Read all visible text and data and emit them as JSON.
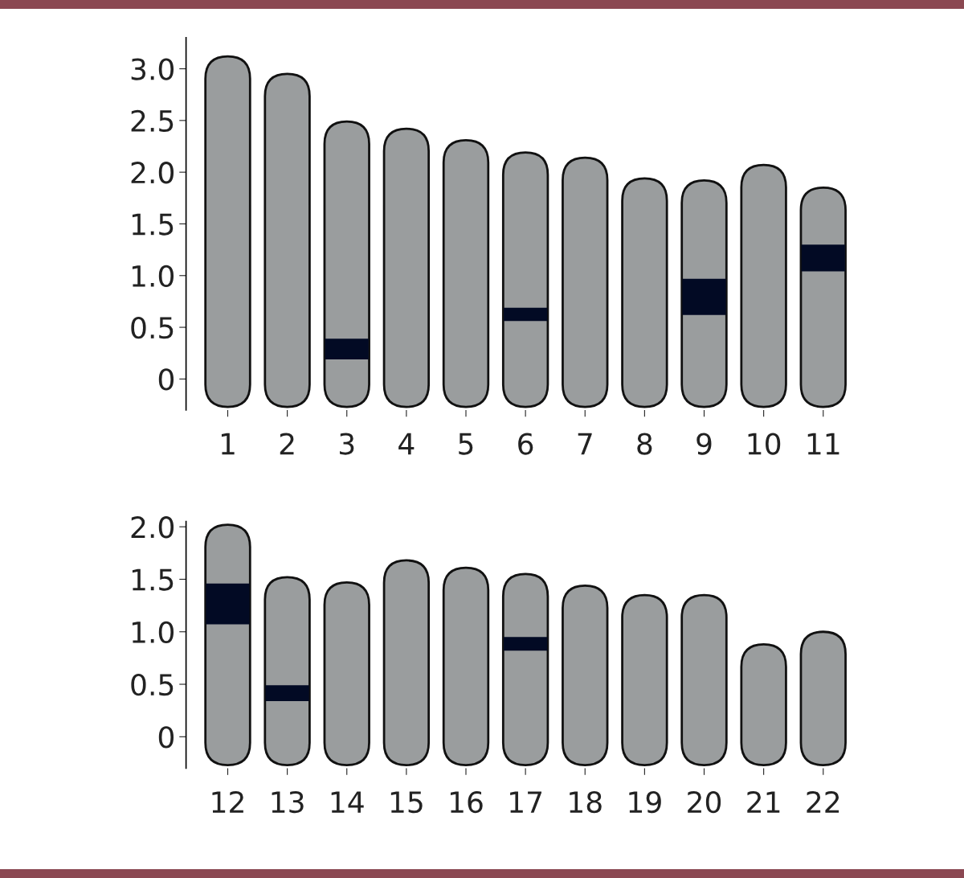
{
  "chart_data": [
    {
      "type": "bar",
      "categories": [
        "1",
        "2",
        "3",
        "4",
        "5",
        "6",
        "7",
        "8",
        "9",
        "10",
        "11"
      ],
      "series": [
        {
          "color": "#9a9d9e",
          "base": [
            -0.27,
            -0.27,
            -0.27,
            -0.27,
            -0.27,
            -0.27,
            -0.27,
            -0.27,
            -0.27,
            -0.27,
            -0.27
          ],
          "values": [
            3.39,
            3.22,
            2.76,
            2.69,
            2.58,
            2.46,
            2.41,
            2.21,
            2.19,
            2.34,
            2.12
          ]
        },
        {
          "color": "#020a24",
          "base": [
            null,
            null,
            0.19,
            null,
            null,
            0.56,
            null,
            null,
            0.62,
            null,
            1.04
          ],
          "values": [
            null,
            null,
            0.2,
            null,
            null,
            0.13,
            null,
            null,
            0.35,
            null,
            0.26
          ]
        }
      ],
      "ylim": [
        -0.3,
        3.3
      ],
      "yticks": [
        0,
        {
          "value": 0.5,
          "label": "0.5"
        },
        {
          "value": 1,
          "label": "1.0"
        },
        {
          "value": 1.5,
          "label": "1.5"
        },
        {
          "value": 2,
          "label": "2.0"
        },
        {
          "value": 2.5,
          "label": "2.5"
        },
        {
          "value": 3,
          "label": "3.0"
        }
      ],
      "grid": false,
      "legend": false
    },
    {
      "type": "bar",
      "categories": [
        "12",
        "13",
        "14",
        "15",
        "16",
        "17",
        "18",
        "19",
        "20",
        "21",
        "22"
      ],
      "series": [
        {
          "color": "#9a9d9e",
          "base": [
            -0.27,
            -0.27,
            -0.27,
            -0.27,
            -0.27,
            -0.27,
            -0.27,
            -0.27,
            -0.27,
            -0.27,
            -0.27
          ],
          "values": [
            2.29,
            1.79,
            1.74,
            1.95,
            1.88,
            1.82,
            1.71,
            1.62,
            1.62,
            1.15,
            1.27
          ]
        },
        {
          "color": "#020a24",
          "base": [
            1.07,
            0.34,
            null,
            null,
            null,
            0.82,
            null,
            null,
            null,
            null,
            null
          ],
          "values": [
            0.39,
            0.15,
            null,
            null,
            null,
            0.13,
            null,
            null,
            null,
            null,
            null
          ]
        }
      ],
      "ylim": [
        -0.3,
        2.05
      ],
      "yticks": [
        0,
        {
          "value": 0.5,
          "label": "0.5"
        },
        {
          "value": 1,
          "label": "1.0"
        },
        {
          "value": 1.5,
          "label": "1.5"
        },
        {
          "value": 2,
          "label": "2.0"
        }
      ],
      "grid": false,
      "legend": false
    }
  ]
}
